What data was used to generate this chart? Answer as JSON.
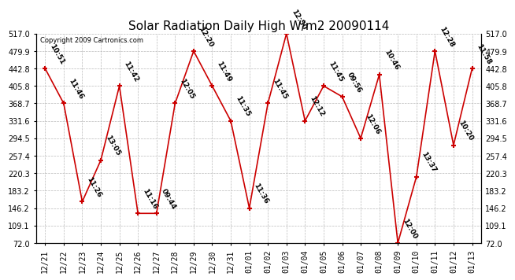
{
  "title": "Solar Radiation Daily High W/m2 20090114",
  "copyright": "Copyright 2009 Cartronics.com",
  "x_labels": [
    "12/21",
    "12/22",
    "12/23",
    "12/24",
    "12/25",
    "12/26",
    "12/27",
    "12/28",
    "12/29",
    "12/30",
    "12/31",
    "01/01",
    "01/02",
    "01/03",
    "01/04",
    "01/05",
    "01/06",
    "01/07",
    "01/08",
    "01/09",
    "01/10",
    "01/11",
    "01/12",
    "01/13"
  ],
  "y_values": [
    442.8,
    368.7,
    160.0,
    248.0,
    405.8,
    135.0,
    135.0,
    368.7,
    479.9,
    405.8,
    331.6,
    146.2,
    368.7,
    517.0,
    331.6,
    405.8,
    383.0,
    294.5,
    430.0,
    72.0,
    213.0,
    479.9,
    280.0,
    442.8
  ],
  "time_labels": [
    "10:51",
    "11:46",
    "11:26",
    "13:05",
    "11:42",
    "11:16",
    "09:44",
    "12:05",
    "12:20",
    "11:49",
    "11:35",
    "11:36",
    "11:45",
    "12:50",
    "12:12",
    "11:45",
    "09:56",
    "12:06",
    "10:46",
    "12:00",
    "13:37",
    "12:28",
    "10:20",
    "11:58"
  ],
  "y_ticks": [
    72.0,
    109.1,
    146.2,
    183.2,
    220.3,
    257.4,
    294.5,
    331.6,
    368.7,
    405.8,
    442.8,
    479.9,
    517.0
  ],
  "y_tick_labels": [
    "72.0",
    "109.1",
    "146.2",
    "183.2",
    "220.3",
    "257.4",
    "294.5",
    "331.6",
    "368.7",
    "405.8",
    "442.8",
    "479.9",
    "517.0"
  ],
  "y_min": 72.0,
  "y_max": 517.0,
  "line_color": "#cc0000",
  "marker_color": "#cc0000",
  "bg_color": "#ffffff",
  "grid_color": "#bbbbbb",
  "title_fontsize": 11,
  "label_fontsize": 6.5,
  "tick_fontsize": 7,
  "copyright_fontsize": 6
}
